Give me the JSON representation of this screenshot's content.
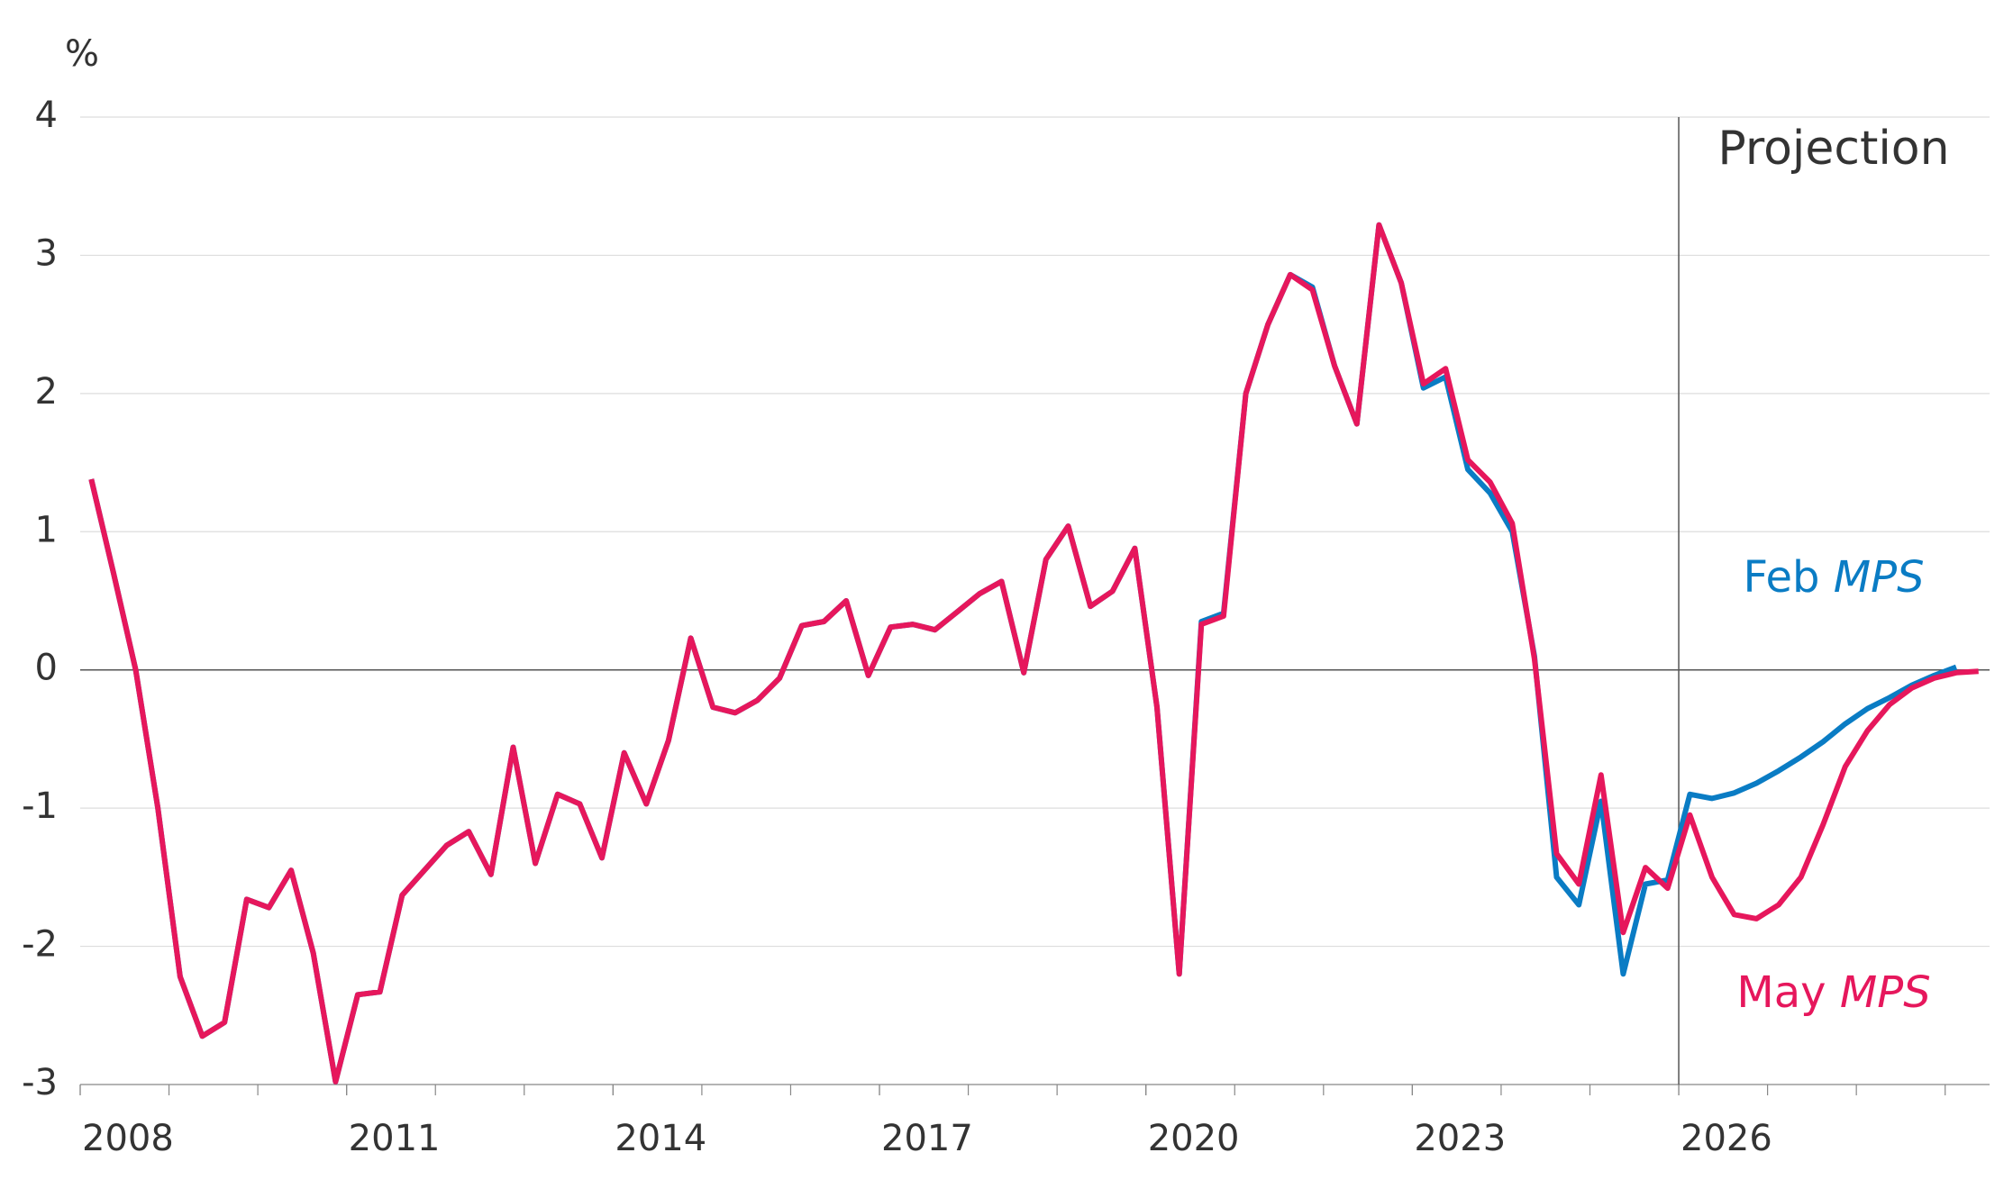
{
  "chart_data": {
    "type": "line",
    "y_unit": "%",
    "x": [
      2008.125,
      2008.375,
      2008.625,
      2008.875,
      2009.125,
      2009.375,
      2009.625,
      2009.875,
      2010.125,
      2010.375,
      2010.625,
      2010.875,
      2011.125,
      2011.375,
      2011.625,
      2011.875,
      2012.125,
      2012.375,
      2012.625,
      2012.875,
      2013.125,
      2013.375,
      2013.625,
      2013.875,
      2014.125,
      2014.375,
      2014.625,
      2014.875,
      2015.125,
      2015.375,
      2015.625,
      2015.875,
      2016.125,
      2016.375,
      2016.625,
      2016.875,
      2017.125,
      2017.375,
      2017.625,
      2017.875,
      2018.125,
      2018.375,
      2018.625,
      2018.875,
      2019.125,
      2019.375,
      2019.625,
      2019.875,
      2020.125,
      2020.375,
      2020.625,
      2020.875,
      2021.125,
      2021.375,
      2021.625,
      2021.875,
      2022.125,
      2022.375,
      2022.625,
      2022.875,
      2023.125,
      2023.375,
      2023.625,
      2023.875,
      2024.125,
      2024.375,
      2024.625,
      2024.875,
      2025.125,
      2025.375,
      2025.625,
      2025.875,
      2026.125,
      2026.375,
      2026.625,
      2026.875,
      2027.125,
      2027.375,
      2027.625,
      2027.875,
      2028.125,
      2028.375,
      2028.625,
      2028.875,
      2029.125,
      2029.375
    ],
    "series": [
      {
        "name": "Feb MPS",
        "color": "#0a7cc4",
        "values": [
          1.38,
          0.7,
          0.0,
          -1.0,
          -2.22,
          -2.65,
          -2.55,
          -1.66,
          -1.72,
          -1.45,
          -2.05,
          -2.98,
          -2.35,
          -2.33,
          -1.63,
          -1.45,
          -1.27,
          -1.17,
          -1.48,
          -0.56,
          -1.4,
          -0.9,
          -0.97,
          -1.36,
          -0.6,
          -0.97,
          -0.51,
          0.23,
          -0.27,
          -0.31,
          -0.22,
          -0.06,
          0.32,
          0.35,
          0.5,
          -0.04,
          0.31,
          0.33,
          0.29,
          0.42,
          0.55,
          0.64,
          -0.02,
          0.8,
          1.04,
          0.46,
          0.57,
          0.88,
          -0.27,
          -2.2,
          0.35,
          0.41,
          2.0,
          2.5,
          2.86,
          2.77,
          2.2,
          1.78,
          3.22,
          2.8,
          2.04,
          2.12,
          1.45,
          1.28,
          1.0,
          0.1,
          -1.5,
          -1.7,
          -0.95,
          -2.2,
          -1.55,
          -1.52,
          -0.9,
          -0.93,
          -0.89,
          -0.82,
          -0.73,
          -0.63,
          -0.52,
          -0.39,
          -0.28,
          -0.2,
          -0.11,
          -0.04,
          0.02,
          null
        ]
      },
      {
        "name": "May MPS",
        "color": "#e6175c",
        "values": [
          1.38,
          0.7,
          0.0,
          -1.0,
          -2.22,
          -2.65,
          -2.55,
          -1.66,
          -1.72,
          -1.45,
          -2.05,
          -2.98,
          -2.35,
          -2.33,
          -1.63,
          -1.45,
          -1.27,
          -1.17,
          -1.48,
          -0.56,
          -1.4,
          -0.9,
          -0.97,
          -1.36,
          -0.6,
          -0.97,
          -0.51,
          0.23,
          -0.27,
          -0.31,
          -0.22,
          -0.06,
          0.32,
          0.35,
          0.5,
          -0.04,
          0.31,
          0.33,
          0.29,
          0.42,
          0.55,
          0.64,
          -0.02,
          0.8,
          1.04,
          0.46,
          0.57,
          0.88,
          -0.27,
          -2.2,
          0.33,
          0.39,
          2.0,
          2.5,
          2.86,
          2.75,
          2.2,
          1.78,
          3.22,
          2.8,
          2.07,
          2.18,
          1.52,
          1.36,
          1.06,
          0.08,
          -1.33,
          -1.55,
          -0.76,
          -1.9,
          -1.43,
          -1.58,
          -1.05,
          -1.5,
          -1.77,
          -1.8,
          -1.7,
          -1.5,
          -1.12,
          -0.7,
          -0.44,
          -0.25,
          -0.13,
          -0.06,
          -0.02,
          -0.01
        ]
      }
    ],
    "xlim": [
      2008,
      2029.5
    ],
    "xticks": [
      2008,
      2011,
      2014,
      2017,
      2020,
      2023,
      2026
    ],
    "ylim": [
      -3,
      4
    ],
    "yticks": [
      -3,
      -2,
      -1,
      0,
      1,
      2,
      3,
      4
    ],
    "grid": true,
    "projection": {
      "x": 2026,
      "label": "Projection"
    }
  }
}
